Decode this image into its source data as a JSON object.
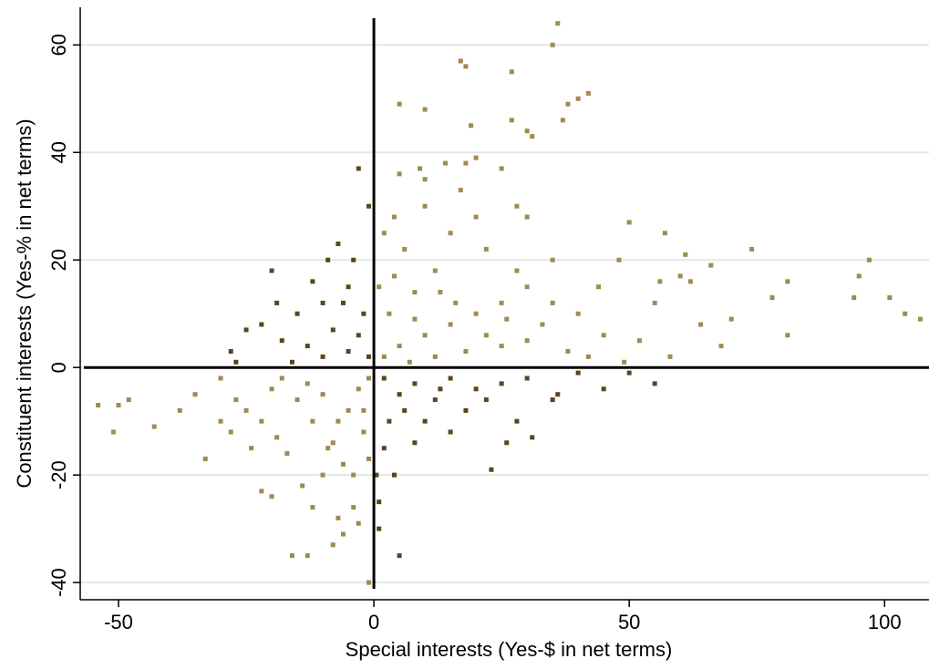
{
  "chart_data": {
    "type": "scatter",
    "xlabel": "Special interests (Yes-$ in net terms)",
    "ylabel": "Constituent interests (Yes-% in net terms)",
    "xlim": [
      -57.5,
      108.7
    ],
    "ylim": [
      -43.2,
      67
    ],
    "xticks": [
      -50,
      0,
      50,
      100
    ],
    "yticks": [
      -40,
      -20,
      0,
      20,
      40,
      60
    ],
    "grid": true,
    "reference_lines": {
      "x": 0,
      "y": 0
    },
    "series": [
      {
        "color": "#a08a4e",
        "x": [
          36,
          35,
          17,
          18,
          27,
          40,
          42,
          38,
          10,
          5,
          27,
          37,
          19,
          30,
          31,
          20,
          18,
          14,
          9,
          25,
          5,
          10,
          30,
          28,
          17,
          50,
          57,
          61,
          66,
          74,
          97,
          95,
          81,
          94,
          101,
          104,
          107,
          78,
          81,
          70,
          68,
          60,
          62,
          55,
          52,
          45,
          40,
          44,
          48,
          35,
          30,
          25,
          20,
          15,
          10,
          5,
          3,
          8,
          12,
          6,
          2,
          4,
          15,
          22,
          28,
          33,
          38,
          42,
          2,
          1,
          7,
          18,
          25,
          12,
          20,
          10,
          16,
          22,
          30,
          35,
          8,
          4,
          13,
          26,
          58,
          64,
          49,
          56,
          -54,
          -50,
          -48,
          -51,
          -43,
          -38,
          -35,
          -33,
          -30,
          -28,
          -25,
          -22,
          -20,
          -18,
          -15,
          -12,
          -8,
          -5,
          -3,
          -1,
          -2,
          -6,
          -10,
          -14,
          -17,
          -20,
          -22,
          -16,
          -13,
          -7,
          -6,
          -3,
          -1,
          -8,
          -4,
          -10,
          -7,
          -13,
          -24,
          -27,
          -1,
          -4,
          -9,
          -19,
          -30,
          -12,
          -2
        ],
        "y": [
          64,
          60,
          57,
          56,
          55,
          50,
          51,
          49,
          48,
          49,
          46,
          46,
          45,
          44,
          43,
          39,
          38,
          38,
          37,
          37,
          36,
          35,
          28,
          30,
          33,
          27,
          25,
          21,
          19,
          22,
          20,
          17,
          16,
          13,
          13,
          10,
          9,
          13,
          6,
          9,
          4,
          17,
          16,
          12,
          5,
          6,
          10,
          15,
          20,
          20,
          15,
          12,
          10,
          8,
          6,
          4,
          10,
          14,
          18,
          22,
          25,
          28,
          25,
          22,
          18,
          8,
          3,
          2,
          2,
          15,
          1,
          3,
          4,
          2,
          28,
          30,
          12,
          6,
          5,
          12,
          9,
          17,
          14,
          9,
          2,
          8,
          1,
          16,
          -7,
          -7,
          -6,
          -12,
          -11,
          -8,
          -5,
          -17,
          -10,
          -12,
          -8,
          -10,
          -4,
          -2,
          -6,
          -10,
          -14,
          -8,
          -4,
          -2,
          -12,
          -18,
          -20,
          -22,
          -16,
          -24,
          -23,
          -35,
          -35,
          -28,
          -31,
          -29,
          -40,
          -33,
          -26,
          -5,
          -10,
          -3,
          -15,
          -6,
          -17,
          -20,
          -15,
          -13,
          -2,
          -26,
          -8
        ]
      },
      {
        "color": "#5b4519",
        "x": [
          -3,
          -1,
          -7,
          -9,
          -5,
          -10,
          -15,
          -20,
          -25,
          -28,
          -18,
          -13,
          -8,
          -5,
          -2,
          -12,
          -16,
          -22,
          -3,
          -1,
          -6,
          -10,
          -4,
          -19,
          -27,
          2,
          5,
          8,
          12,
          15,
          20,
          25,
          30,
          35,
          40,
          3,
          6,
          10,
          15,
          18,
          23,
          31,
          2,
          0.5,
          1,
          5,
          45,
          50,
          55,
          1,
          8,
          28,
          13,
          4,
          22,
          36,
          26
        ],
        "y": [
          37,
          30,
          23,
          20,
          15,
          12,
          10,
          18,
          7,
          3,
          5,
          4,
          7,
          3,
          10,
          16,
          1,
          8,
          6,
          2,
          12,
          2,
          20,
          12,
          1,
          -2,
          -5,
          -3,
          -6,
          -2,
          -4,
          -3,
          -2,
          -6,
          -1,
          -10,
          -8,
          -10,
          -12,
          -8,
          -19,
          -13,
          -15,
          -20,
          -25,
          -35,
          -4,
          -1,
          -3,
          -30,
          -14,
          -10,
          -4,
          -20,
          -6,
          -5,
          -14
        ]
      }
    ]
  }
}
